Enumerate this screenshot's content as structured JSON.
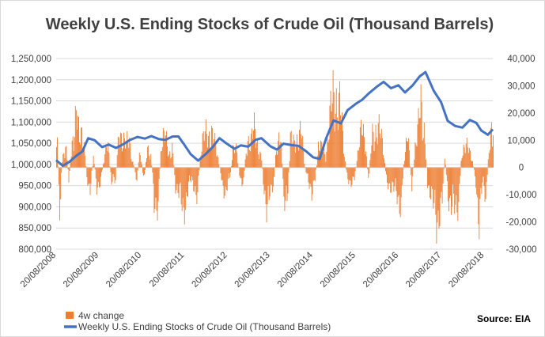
{
  "chart_data": {
    "type": "bar+line",
    "title": "Weekly U.S. Ending Stocks of Crude Oil (Thousand Barrels)",
    "source": "Source: EIA",
    "x_tick_labels": [
      "20/08/2008",
      "20/08/2009",
      "20/08/2010",
      "20/08/2011",
      "20/08/2012",
      "20/08/2013",
      "20/08/2014",
      "20/08/2015",
      "20/08/2016",
      "20/08/2017",
      "20/08/2018"
    ],
    "x_range": [
      "2008-08-20",
      "2018-10-31"
    ],
    "y_left": {
      "min": 800000,
      "max": 1250000,
      "step": 50000,
      "tick_labels": [
        "800,000",
        "850,000",
        "900,000",
        "950,000",
        "1,000,000",
        "1,050,000",
        "1,100,000",
        "1,150,000",
        "1,200,000",
        "1,250,000"
      ]
    },
    "y_right": {
      "min": -30000,
      "max": 40000,
      "step": 10000,
      "tick_labels": [
        "-30,000",
        "-20,000",
        "-10,000",
        "0",
        "10,000",
        "20,000",
        "30,000",
        "40,000"
      ]
    },
    "series": [
      {
        "name": "4w change",
        "type": "bar",
        "axis": "right",
        "color": "#ED7D31",
        "points": [
          [
            "2008-08-27",
            7500
          ],
          [
            "2008-09-17",
            -14000
          ],
          [
            "2008-10-08",
            3000
          ],
          [
            "2008-11-05",
            9000
          ],
          [
            "2008-12-03",
            -4000
          ],
          [
            "2009-01-07",
            12000
          ],
          [
            "2009-02-04",
            20000
          ],
          [
            "2009-03-04",
            9000
          ],
          [
            "2009-04-01",
            15500
          ],
          [
            "2009-05-06",
            -3000
          ],
          [
            "2009-06-03",
            -8000
          ],
          [
            "2009-07-01",
            4000
          ],
          [
            "2009-07-29",
            -6500
          ],
          [
            "2009-09-02",
            -5000
          ],
          [
            "2009-10-07",
            5500
          ],
          [
            "2009-11-04",
            7000
          ],
          [
            "2009-12-02",
            -6000
          ],
          [
            "2010-01-06",
            -4000
          ],
          [
            "2010-02-03",
            11000
          ],
          [
            "2010-03-03",
            12500
          ],
          [
            "2010-04-07",
            8000
          ],
          [
            "2010-05-05",
            9500
          ],
          [
            "2010-06-02",
            2000
          ],
          [
            "2010-07-07",
            -4000
          ],
          [
            "2010-08-04",
            7000
          ],
          [
            "2010-09-01",
            -5000
          ],
          [
            "2010-10-06",
            6000
          ],
          [
            "2010-11-03",
            5000
          ],
          [
            "2010-12-01",
            -12000
          ],
          [
            "2011-01-05",
            -13000
          ],
          [
            "2011-02-02",
            12000
          ],
          [
            "2011-03-02",
            11000
          ],
          [
            "2011-04-06",
            4500
          ],
          [
            "2011-05-04",
            8000
          ],
          [
            "2011-06-01",
            -6000
          ],
          [
            "2011-07-06",
            -10000
          ],
          [
            "2011-08-03",
            -16500
          ],
          [
            "2011-09-07",
            -9000
          ],
          [
            "2011-10-05",
            -5000
          ],
          [
            "2011-11-02",
            -6000
          ],
          [
            "2011-12-07",
            -10000
          ],
          [
            "2012-01-04",
            8000
          ],
          [
            "2012-02-01",
            11000
          ],
          [
            "2012-03-07",
            12000
          ],
          [
            "2012-04-04",
            13000
          ],
          [
            "2012-05-02",
            8000
          ],
          [
            "2012-06-06",
            2000
          ],
          [
            "2012-07-04",
            -6000
          ],
          [
            "2012-08-01",
            -8500
          ],
          [
            "2012-09-05",
            -4000
          ],
          [
            "2012-10-03",
            5500
          ],
          [
            "2012-11-07",
            6500
          ],
          [
            "2012-12-05",
            -6000
          ],
          [
            "2013-01-02",
            -4000
          ],
          [
            "2013-02-06",
            11000
          ],
          [
            "2013-03-06",
            10000
          ],
          [
            "2013-04-03",
            13000
          ],
          [
            "2013-05-01",
            9000
          ],
          [
            "2013-06-05",
            3000
          ],
          [
            "2013-07-03",
            -11000
          ],
          [
            "2013-07-24",
            -19500
          ],
          [
            "2013-08-14",
            -9000
          ],
          [
            "2013-09-18",
            -4000
          ],
          [
            "2013-10-16",
            11000
          ],
          [
            "2013-11-13",
            12000
          ],
          [
            "2013-12-11",
            -10000
          ],
          [
            "2014-01-08",
            -15000
          ],
          [
            "2014-02-05",
            10000
          ],
          [
            "2014-03-05",
            8000
          ],
          [
            "2014-04-02",
            11000
          ],
          [
            "2014-05-07",
            13000
          ],
          [
            "2014-06-04",
            2000
          ],
          [
            "2014-07-02",
            -5000
          ],
          [
            "2014-08-06",
            -8000
          ],
          [
            "2014-09-03",
            -4000
          ],
          [
            "2014-10-01",
            8000
          ],
          [
            "2014-11-05",
            6000
          ],
          [
            "2014-12-03",
            5000
          ],
          [
            "2015-01-07",
            17000
          ],
          [
            "2015-02-04",
            25000
          ],
          [
            "2015-03-04",
            26500
          ],
          [
            "2015-04-01",
            22000
          ],
          [
            "2015-05-06",
            8000
          ],
          [
            "2015-06-03",
            -4000
          ],
          [
            "2015-07-01",
            -5000
          ],
          [
            "2015-08-05",
            -4000
          ],
          [
            "2015-09-02",
            5000
          ],
          [
            "2015-10-07",
            13500
          ],
          [
            "2015-11-04",
            12000
          ],
          [
            "2015-12-02",
            -5000
          ],
          [
            "2016-01-06",
            12000
          ],
          [
            "2016-02-03",
            14000
          ],
          [
            "2016-03-02",
            13000
          ],
          [
            "2016-04-06",
            8000
          ],
          [
            "2016-05-04",
            -5000
          ],
          [
            "2016-06-01",
            -6000
          ],
          [
            "2016-07-06",
            -8000
          ],
          [
            "2016-08-03",
            -10000
          ],
          [
            "2016-09-07",
            -13000
          ],
          [
            "2016-10-05",
            6000
          ],
          [
            "2016-11-02",
            11500
          ],
          [
            "2016-12-07",
            -7000
          ],
          [
            "2017-01-04",
            8000
          ],
          [
            "2017-02-01",
            14000
          ],
          [
            "2017-02-22",
            23000
          ],
          [
            "2017-03-22",
            15000
          ],
          [
            "2017-04-19",
            -5000
          ],
          [
            "2017-05-17",
            -9000
          ],
          [
            "2017-06-07",
            -14000
          ],
          [
            "2017-07-05",
            -19500
          ],
          [
            "2017-07-26",
            -16000
          ],
          [
            "2017-08-23",
            -12000
          ],
          [
            "2017-09-13",
            4000
          ],
          [
            "2017-10-11",
            -9000
          ],
          [
            "2017-11-08",
            -15000
          ],
          [
            "2017-12-06",
            -14000
          ],
          [
            "2018-01-10",
            -12000
          ],
          [
            "2018-02-07",
            7000
          ],
          [
            "2018-03-07",
            8000
          ],
          [
            "2018-04-04",
            6000
          ],
          [
            "2018-05-02",
            4000
          ],
          [
            "2018-06-06",
            -5000
          ],
          [
            "2018-07-04",
            -19000
          ],
          [
            "2018-08-01",
            -6000
          ],
          [
            "2018-08-29",
            -10000
          ],
          [
            "2018-09-26",
            6000
          ],
          [
            "2018-10-17",
            17000
          ]
        ]
      },
      {
        "name": "Weekly U.S. Ending Stocks of Crude Oil (Thousand Barrels)",
        "type": "line",
        "axis": "left",
        "color": "#4472C4",
        "points": [
          [
            "2008-08-20",
            1010000
          ],
          [
            "2008-10-15",
            997000
          ],
          [
            "2008-12-10",
            1006000
          ],
          [
            "2009-02-11",
            1021000
          ],
          [
            "2009-04-01",
            1031000
          ],
          [
            "2009-05-20",
            1062000
          ],
          [
            "2009-07-15",
            1057000
          ],
          [
            "2009-09-16",
            1041000
          ],
          [
            "2009-11-11",
            1047000
          ],
          [
            "2010-01-13",
            1039000
          ],
          [
            "2010-03-10",
            1047000
          ],
          [
            "2010-05-12",
            1058000
          ],
          [
            "2010-07-14",
            1065000
          ],
          [
            "2010-09-15",
            1061000
          ],
          [
            "2010-11-10",
            1067000
          ],
          [
            "2011-01-12",
            1060000
          ],
          [
            "2011-03-09",
            1058000
          ],
          [
            "2011-05-11",
            1066000
          ],
          [
            "2011-06-29",
            1066000
          ],
          [
            "2011-08-17",
            1047000
          ],
          [
            "2011-10-12",
            1024000
          ],
          [
            "2011-12-14",
            1009000
          ],
          [
            "2012-02-15",
            1024000
          ],
          [
            "2012-04-18",
            1042000
          ],
          [
            "2012-06-13",
            1062000
          ],
          [
            "2012-08-15",
            1049000
          ],
          [
            "2012-10-17",
            1037000
          ],
          [
            "2012-12-12",
            1045000
          ],
          [
            "2013-02-13",
            1042000
          ],
          [
            "2013-04-17",
            1058000
          ],
          [
            "2013-06-05",
            1062000
          ],
          [
            "2013-08-21",
            1043000
          ],
          [
            "2013-10-16",
            1035000
          ],
          [
            "2013-12-11",
            1049000
          ],
          [
            "2014-02-12",
            1046000
          ],
          [
            "2014-04-16",
            1044000
          ],
          [
            "2014-06-18",
            1032000
          ],
          [
            "2014-08-20",
            1017000
          ],
          [
            "2014-10-15",
            1013000
          ],
          [
            "2014-12-10",
            1062000
          ],
          [
            "2015-02-11",
            1104000
          ],
          [
            "2015-04-15",
            1097000
          ],
          [
            "2015-06-10",
            1128000
          ],
          [
            "2015-08-19",
            1143000
          ],
          [
            "2015-10-14",
            1153000
          ],
          [
            "2015-12-09",
            1168000
          ],
          [
            "2016-02-17",
            1184000
          ],
          [
            "2016-04-13",
            1195000
          ],
          [
            "2016-06-15",
            1180000
          ],
          [
            "2016-08-17",
            1187000
          ],
          [
            "2016-10-12",
            1170000
          ],
          [
            "2016-12-14",
            1186000
          ],
          [
            "2017-02-15",
            1208000
          ],
          [
            "2017-04-05",
            1218000
          ],
          [
            "2017-06-14",
            1174000
          ],
          [
            "2017-08-16",
            1147000
          ],
          [
            "2017-10-11",
            1103000
          ],
          [
            "2017-12-13",
            1091000
          ],
          [
            "2018-02-14",
            1087000
          ],
          [
            "2018-04-18",
            1105000
          ],
          [
            "2018-06-13",
            1098000
          ],
          [
            "2018-07-25",
            1080000
          ],
          [
            "2018-09-19",
            1070000
          ],
          [
            "2018-10-31",
            1083000
          ]
        ]
      }
    ],
    "legend_position": "bottom-left"
  }
}
